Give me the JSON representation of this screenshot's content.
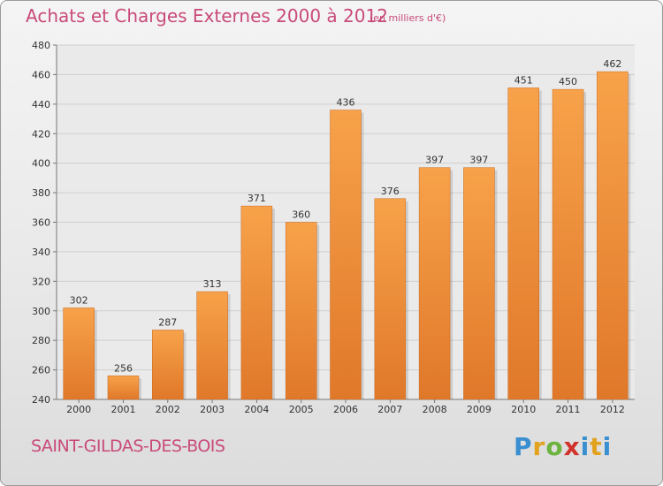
{
  "header": {
    "title": "Achats et Charges Externes 2000 à 2012",
    "subtitle": "(en milliers d'€)"
  },
  "footer": {
    "commune": "SAINT-GILDAS-DES-BOIS",
    "logo_letters": [
      "P",
      "r",
      "o",
      "x",
      "i",
      "t",
      "i"
    ],
    "logo_colors": [
      "#3a8fd1",
      "#e2a21d",
      "#6db33f",
      "#d1322b",
      "#3a8fd1",
      "#e2a21d",
      "#3a8fd1"
    ]
  },
  "colors": {
    "bar_top": "#f7a24a",
    "bar_bottom": "#e0782a",
    "bar_edge": "#c9691f",
    "plot_bg": "#eaeaea",
    "grid": "#cfcfcf",
    "title": "#c94a7a"
  },
  "chart_data": {
    "type": "bar",
    "categories": [
      "2000",
      "2001",
      "2002",
      "2003",
      "2004",
      "2005",
      "2006",
      "2007",
      "2008",
      "2009",
      "2010",
      "2011",
      "2012"
    ],
    "values": [
      302,
      256,
      287,
      313,
      371,
      360,
      436,
      376,
      397,
      397,
      451,
      450,
      462
    ],
    "title": "Achats et Charges Externes 2000 à 2012",
    "xlabel": "",
    "ylabel": "",
    "ylim": [
      240,
      480
    ],
    "yticks": [
      240,
      260,
      280,
      300,
      320,
      340,
      360,
      380,
      400,
      420,
      440,
      460,
      480
    ],
    "grid": true
  }
}
